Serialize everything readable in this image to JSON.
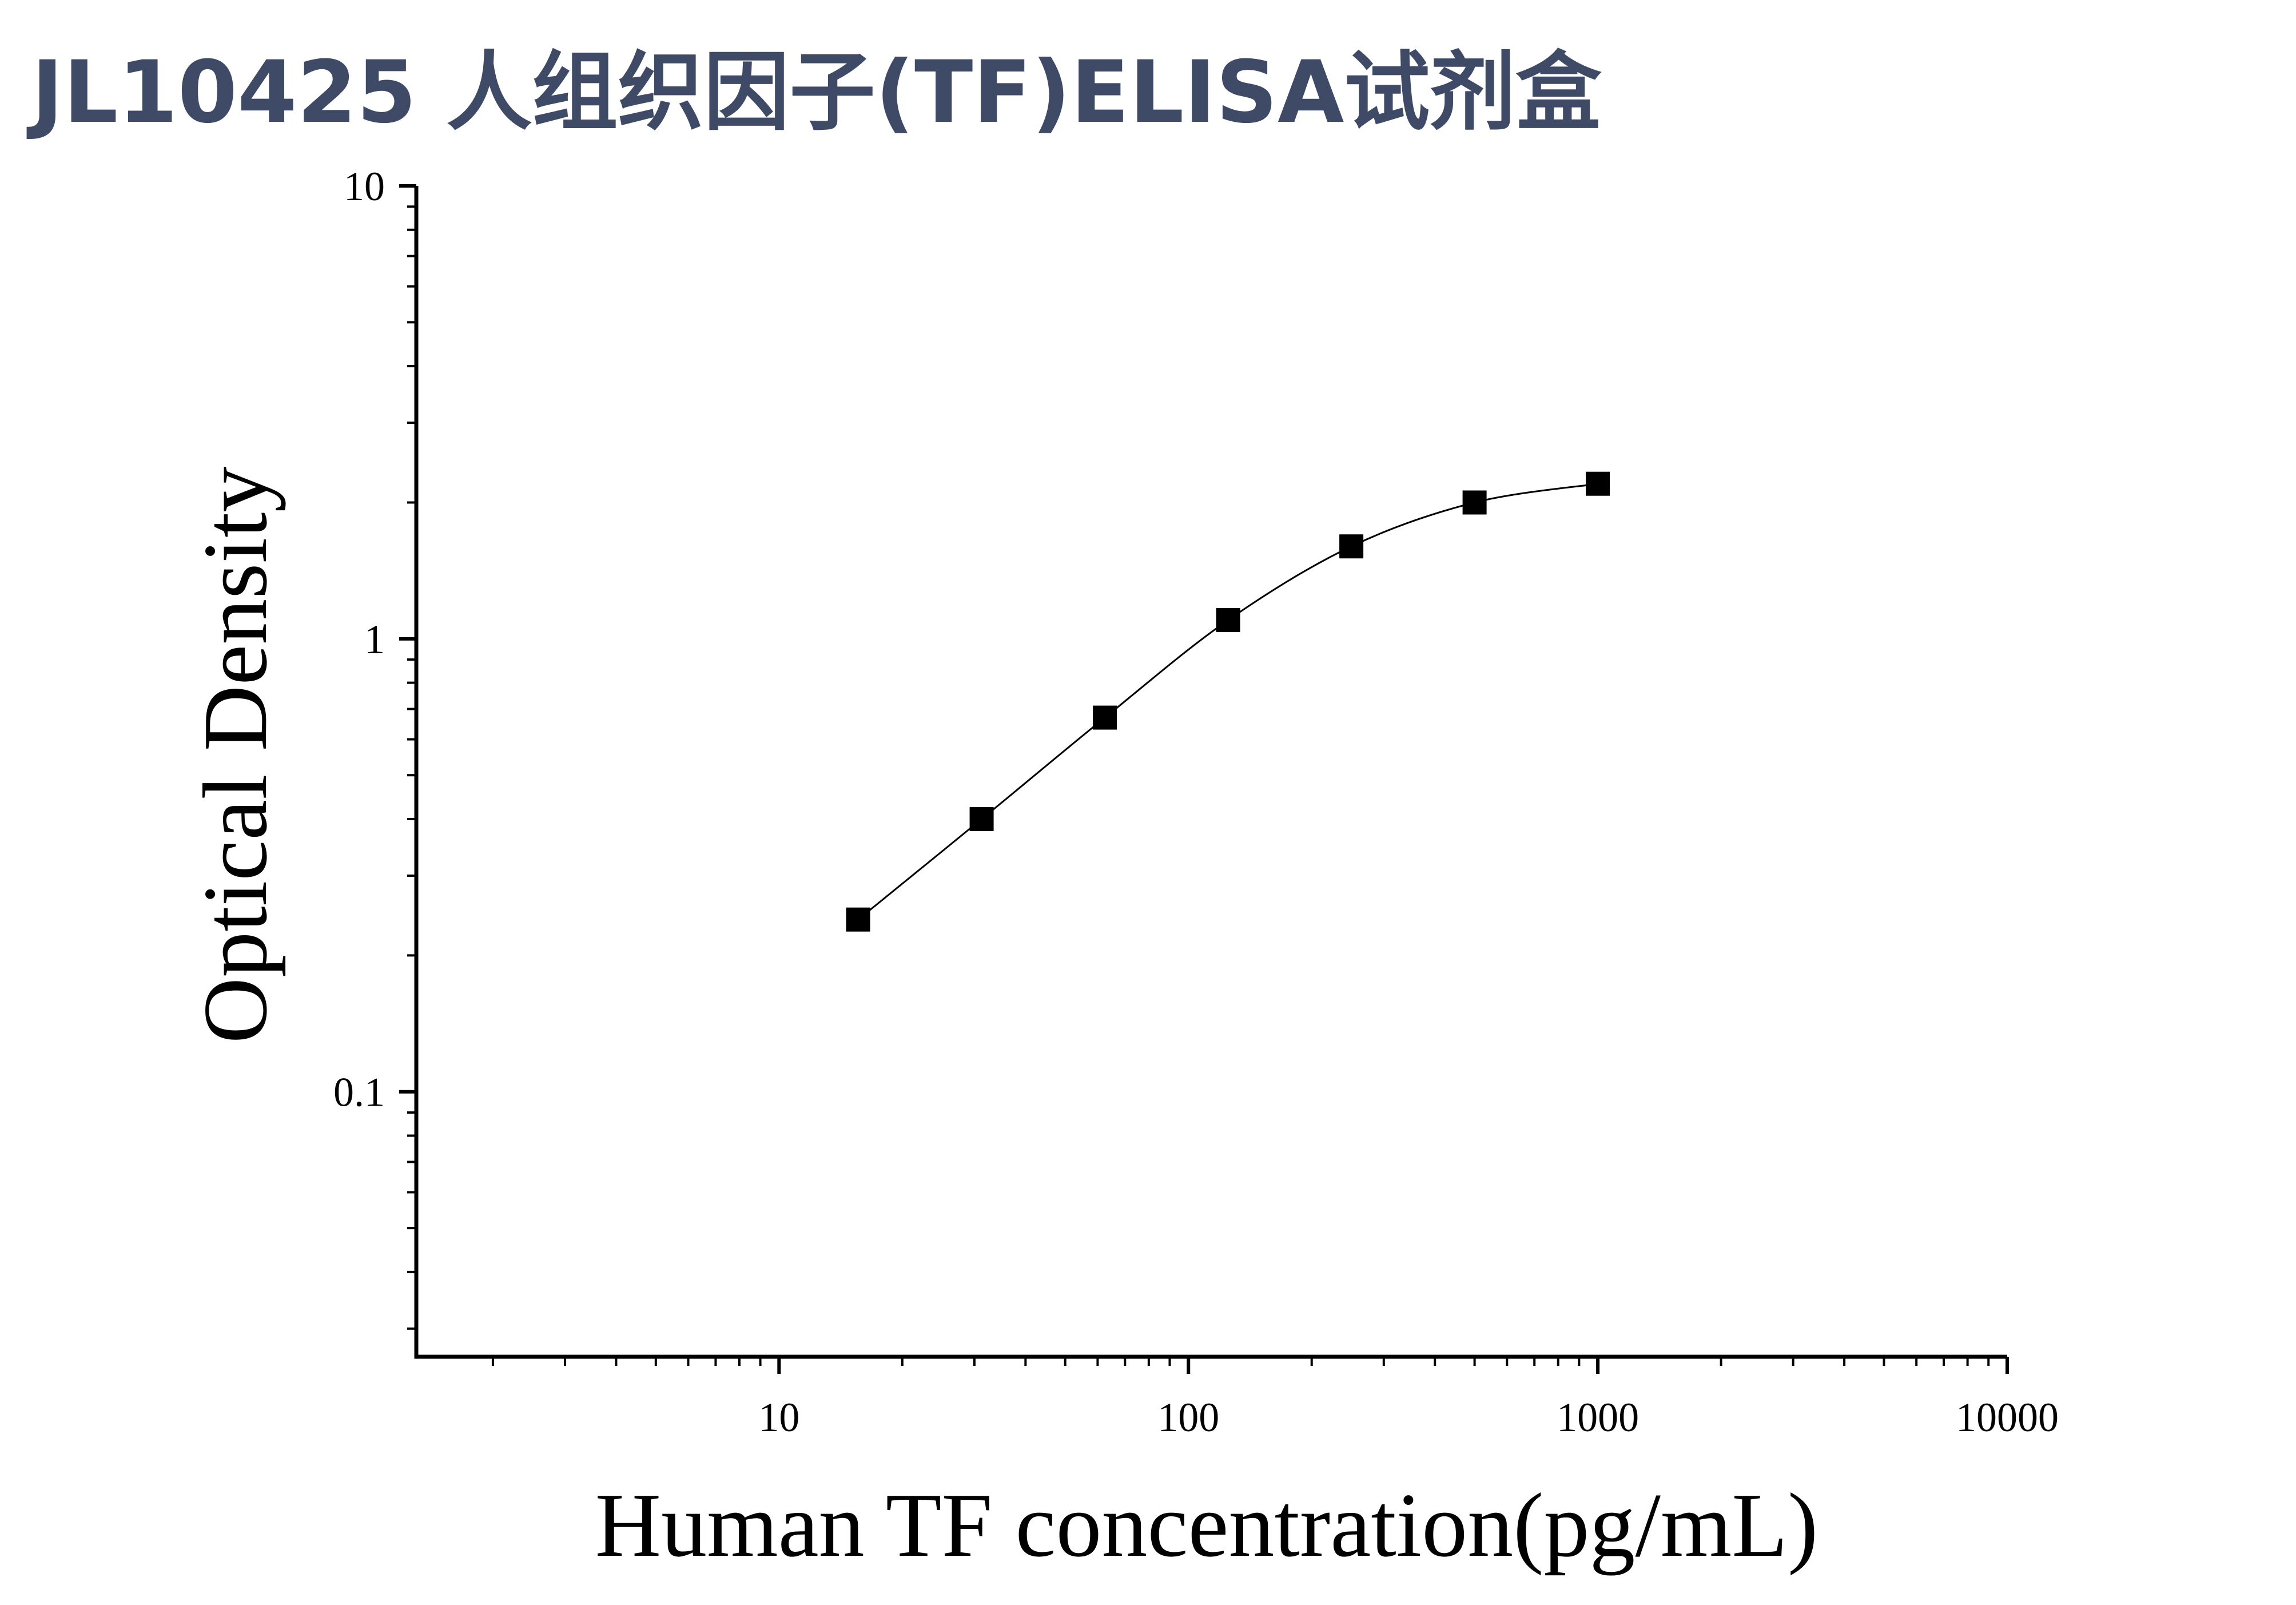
{
  "title": "JL10425 人组织因子(TF)ELISA试剂盒",
  "chart_data": {
    "type": "scatter",
    "title": "JL10425 人组织因子(TF)ELISA试剂盒",
    "xlabel": "Human TF concentration(pg/mL)",
    "ylabel": "Optical Density",
    "x_scale": "log",
    "y_scale": "log",
    "xlim": [
      1.3,
      10000
    ],
    "ylim": [
      0.026,
      10
    ],
    "x_ticks": [
      "10",
      "100",
      "1000",
      "10000"
    ],
    "y_ticks": [
      "10",
      "1",
      "0.1"
    ],
    "grid": false,
    "legend": "none",
    "marker": "square",
    "fit_curve": true,
    "color": "#000000",
    "series": [
      {
        "x": [
          15.6,
          31.25,
          62.5,
          125,
          250,
          500,
          1000
        ],
        "y": [
          0.24,
          0.4,
          0.67,
          1.1,
          1.6,
          2.0,
          2.2
        ]
      }
    ]
  }
}
